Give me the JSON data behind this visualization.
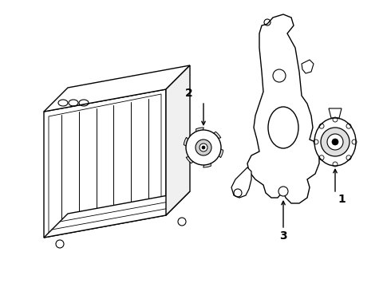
{
  "background_color": "#ffffff",
  "line_color": "#000000",
  "line_width": 1.0,
  "label_1": "1",
  "label_2": "2",
  "label_3": "3",
  "label_fontsize": 10,
  "figsize": [
    4.9,
    3.6
  ],
  "dpi": 100
}
